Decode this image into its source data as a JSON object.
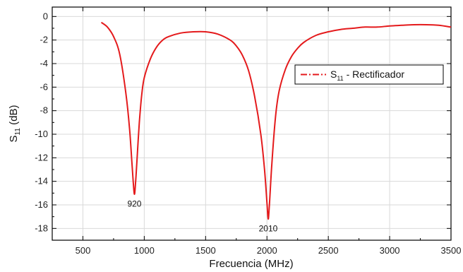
{
  "chart_data": {
    "type": "line",
    "title": "",
    "xlabel": "Frecuencia (MHz)",
    "ylabel_main": "S",
    "ylabel_sub": "11",
    "ylabel_unit": " (dB)",
    "xlim": [
      250,
      3500
    ],
    "ylim": [
      -19,
      0.8
    ],
    "xticks": [
      500,
      1000,
      1500,
      2000,
      2500,
      3000,
      3500
    ],
    "xtick_labels": [
      "500",
      "1000",
      "1500",
      "2000",
      "2500",
      "3000",
      "3500"
    ],
    "yticks": [
      0,
      -2,
      -4,
      -6,
      -8,
      -10,
      -12,
      -14,
      -16,
      -18
    ],
    "ytick_labels": [
      "0",
      "-2",
      "-4",
      "-6",
      "-8",
      "-10",
      "-12",
      "-14",
      "-16",
      "-18"
    ],
    "grid": true,
    "legend_position": "right",
    "annotations": [
      {
        "text": "920",
        "x": 920,
        "y": -15.9
      },
      {
        "text": "2010",
        "x": 2010,
        "y": -18.0
      }
    ],
    "series": [
      {
        "name_main": "S",
        "name_sub": "11",
        "name_rest": " - Rectificador",
        "color": "#e41a1c",
        "x": [
          650,
          700,
          750,
          800,
          850,
          880,
          900,
          910,
          920,
          930,
          940,
          960,
          980,
          1000,
          1050,
          1100,
          1150,
          1200,
          1300,
          1400,
          1500,
          1600,
          1700,
          1750,
          1800,
          1850,
          1900,
          1950,
          1980,
          2000,
          2010,
          2020,
          2040,
          2070,
          2100,
          2150,
          2200,
          2250,
          2300,
          2400,
          2500,
          2600,
          2700,
          2800,
          2900,
          3000,
          3100,
          3200,
          3300,
          3400,
          3500
        ],
        "y": [
          -0.5,
          -0.9,
          -1.7,
          -3.2,
          -6.5,
          -9.5,
          -12.5,
          -14.0,
          -15.1,
          -14.0,
          -12.3,
          -9.0,
          -6.6,
          -5.2,
          -3.6,
          -2.6,
          -2.0,
          -1.7,
          -1.4,
          -1.3,
          -1.3,
          -1.5,
          -2.0,
          -2.5,
          -3.3,
          -4.6,
          -6.8,
          -10.0,
          -13.0,
          -15.8,
          -17.2,
          -16.0,
          -12.5,
          -8.5,
          -6.3,
          -4.5,
          -3.4,
          -2.7,
          -2.2,
          -1.6,
          -1.3,
          -1.1,
          -1.0,
          -0.9,
          -0.9,
          -0.8,
          -0.75,
          -0.7,
          -0.7,
          -0.75,
          -0.9
        ]
      }
    ]
  }
}
